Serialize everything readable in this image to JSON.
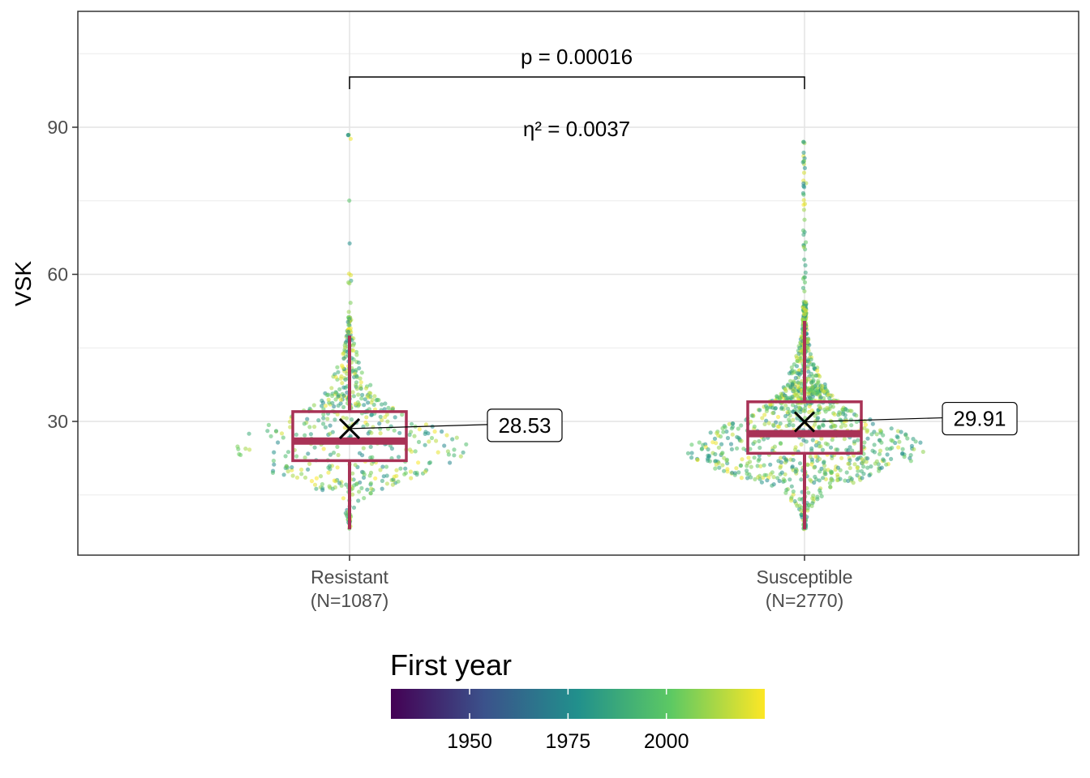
{
  "chart_data": {
    "type": "box",
    "ylabel": "VSK",
    "ylim": [
      2,
      112
    ],
    "y_ticks": [
      30,
      60,
      90
    ],
    "grid": true,
    "groups": [
      {
        "label_line1": "Resistant",
        "label_line2": "(N=1087)",
        "box": {
          "whisker_low": 8,
          "q1": 22,
          "median": 26,
          "q3": 32,
          "whisker_high": 47.5
        },
        "mean": 28.53,
        "mean_label": "28.53",
        "max_value": 89,
        "spread": 140
      },
      {
        "label_line1": "Susceptible",
        "label_line2": "(N=2770)",
        "box": {
          "whisker_low": 8,
          "q1": 23.5,
          "median": 27.5,
          "q3": 34,
          "whisker_high": 50.5
        },
        "mean": 29.91,
        "mean_label": "29.91",
        "max_value": 89,
        "spread": 140
      }
    ],
    "annotations": {
      "p_value": "p = 0.00016",
      "effect_size": "η² = 0.0037"
    },
    "legend": {
      "title": "First year",
      "position": "bottom",
      "range": [
        1930,
        2025
      ],
      "ticks": [
        "1950",
        "1975",
        "2000"
      ],
      "tick_values": [
        1950,
        1975,
        2000
      ],
      "colormap": "viridis"
    },
    "colors": {
      "box": "#A83256",
      "viridis": [
        "#440154",
        "#3B528B",
        "#21908C",
        "#5DC963",
        "#FDE725"
      ]
    }
  }
}
